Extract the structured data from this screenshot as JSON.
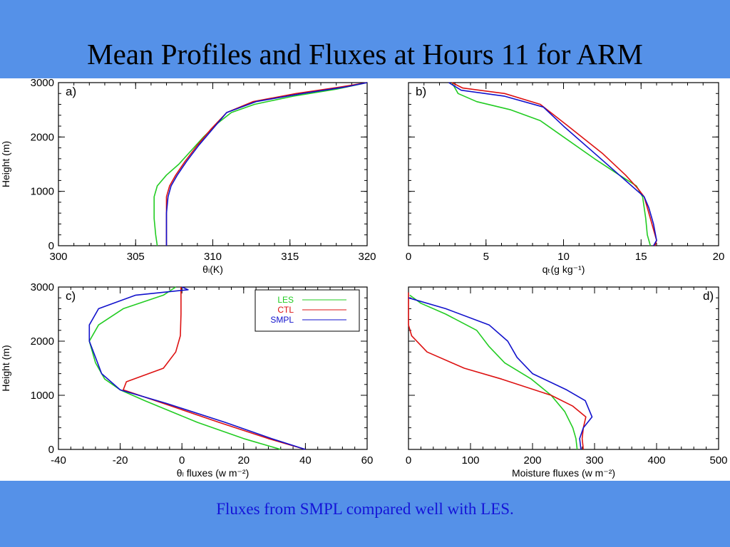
{
  "slide": {
    "title": "Mean Profiles and Fluxes at Hours 11 for ARM",
    "caption": "Fluxes from SMPL compared well with LES."
  },
  "colors": {
    "LES": "#22cc22",
    "CTL": "#dd1111",
    "SMPL": "#1111cc",
    "background": "#5591e8"
  },
  "chart_data": [
    {
      "type": "line",
      "panel_label": "a)",
      "xlabel": "θₗ(K)",
      "ylabel": "Height (m)",
      "xlim": [
        300,
        320
      ],
      "ylim": [
        0,
        3000
      ],
      "xticks": [
        300,
        305,
        310,
        315,
        320
      ],
      "yticks": [
        0,
        1000,
        2000,
        3000
      ],
      "series": [
        {
          "name": "LES",
          "color": "#22cc22",
          "points": [
            [
              306.4,
              0
            ],
            [
              306.3,
              200
            ],
            [
              306.2,
              500
            ],
            [
              306.2,
              900
            ],
            [
              306.4,
              1100
            ],
            [
              307.0,
              1300
            ],
            [
              307.8,
              1500
            ],
            [
              308.6,
              1750
            ],
            [
              309.4,
              2000
            ],
            [
              310.3,
              2250
            ],
            [
              311.2,
              2450
            ],
            [
              312.7,
              2600
            ],
            [
              315.2,
              2750
            ],
            [
              318.0,
              2880
            ],
            [
              320.0,
              3000
            ]
          ]
        },
        {
          "name": "CTL",
          "color": "#dd1111",
          "points": [
            [
              307.0,
              0
            ],
            [
              307.0,
              300
            ],
            [
              307.0,
              600
            ],
            [
              307.0,
              900
            ],
            [
              307.2,
              1100
            ],
            [
              307.6,
              1300
            ],
            [
              308.2,
              1550
            ],
            [
              309.0,
              1850
            ],
            [
              309.9,
              2150
            ],
            [
              310.9,
              2450
            ],
            [
              312.6,
              2650
            ],
            [
              315.4,
              2800
            ],
            [
              318.3,
              2920
            ],
            [
              320.0,
              3000
            ]
          ]
        },
        {
          "name": "SMPL",
          "color": "#1111cc",
          "points": [
            [
              307.0,
              0
            ],
            [
              307.0,
              300
            ],
            [
              307.0,
              600
            ],
            [
              307.1,
              900
            ],
            [
              307.3,
              1100
            ],
            [
              307.7,
              1300
            ],
            [
              308.3,
              1550
            ],
            [
              309.1,
              1850
            ],
            [
              310.0,
              2150
            ],
            [
              310.9,
              2450
            ],
            [
              312.8,
              2650
            ],
            [
              315.8,
              2800
            ],
            [
              318.6,
              2920
            ],
            [
              320.0,
              3000
            ]
          ]
        }
      ]
    },
    {
      "type": "line",
      "panel_label": "b)",
      "xlabel": "qₜ(g kg⁻¹)",
      "ylabel": "",
      "xlim": [
        0,
        20
      ],
      "ylim": [
        0,
        3000
      ],
      "xticks": [
        0,
        5,
        10,
        15,
        20
      ],
      "yticks": [
        0,
        1000,
        2000,
        3000
      ],
      "series": [
        {
          "name": "LES",
          "color": "#22cc22",
          "points": [
            [
              15.6,
              0
            ],
            [
              15.4,
              200
            ],
            [
              15.3,
              500
            ],
            [
              15.1,
              900
            ],
            [
              14.7,
              1100
            ],
            [
              13.6,
              1300
            ],
            [
              12.0,
              1600
            ],
            [
              10.0,
              2000
            ],
            [
              8.5,
              2300
            ],
            [
              6.6,
              2500
            ],
            [
              4.4,
              2650
            ],
            [
              3.2,
              2800
            ],
            [
              2.8,
              3000
            ]
          ]
        },
        {
          "name": "CTL",
          "color": "#dd1111",
          "points": [
            [
              15.9,
              0
            ],
            [
              16.0,
              100
            ],
            [
              15.7,
              400
            ],
            [
              15.4,
              700
            ],
            [
              15.2,
              900
            ],
            [
              14.8,
              1050
            ],
            [
              14.0,
              1300
            ],
            [
              12.5,
              1700
            ],
            [
              10.3,
              2200
            ],
            [
              8.5,
              2600
            ],
            [
              6.2,
              2800
            ],
            [
              3.5,
              2900
            ],
            [
              2.8,
              3000
            ]
          ]
        },
        {
          "name": "SMPL",
          "color": "#1111cc",
          "points": [
            [
              15.8,
              0
            ],
            [
              16.0,
              100
            ],
            [
              15.8,
              400
            ],
            [
              15.5,
              700
            ],
            [
              15.2,
              900
            ],
            [
              14.6,
              1050
            ],
            [
              13.6,
              1300
            ],
            [
              12.0,
              1700
            ],
            [
              10.0,
              2200
            ],
            [
              8.7,
              2550
            ],
            [
              6.2,
              2750
            ],
            [
              3.4,
              2860
            ],
            [
              2.6,
              3000
            ]
          ]
        }
      ]
    },
    {
      "type": "line",
      "panel_label": "c)",
      "xlabel": "θₗ fluxes (w m⁻²)",
      "ylabel": "Height (m)",
      "xlim": [
        -40,
        60
      ],
      "ylim": [
        0,
        3000
      ],
      "xticks": [
        -40,
        -20,
        0,
        20,
        40,
        60
      ],
      "yticks": [
        0,
        1000,
        2000,
        3000
      ],
      "legend": {
        "position": "top-right",
        "entries": [
          "LES",
          "CTL",
          "SMPL"
        ]
      },
      "series": [
        {
          "name": "LES",
          "color": "#22cc22",
          "points": [
            [
              32,
              0
            ],
            [
              20,
              200
            ],
            [
              5,
              500
            ],
            [
              -12,
              900
            ],
            [
              -20,
              1100
            ],
            [
              -25,
              1300
            ],
            [
              -28,
              1600
            ],
            [
              -30,
              2000
            ],
            [
              -27,
              2300
            ],
            [
              -19,
              2600
            ],
            [
              -6,
              2850
            ],
            [
              -2,
              3000
            ]
          ]
        },
        {
          "name": "CTL",
          "color": "#dd1111",
          "points": [
            [
              40,
              0
            ],
            [
              28,
              200
            ],
            [
              12,
              500
            ],
            [
              -6,
              850
            ],
            [
              -19,
              1100
            ],
            [
              -18,
              1250
            ],
            [
              -6,
              1500
            ],
            [
              -2,
              1800
            ],
            [
              -0.5,
              2100
            ],
            [
              -0.3,
              2500
            ],
            [
              -0.3,
              3000
            ]
          ]
        },
        {
          "name": "SMPL",
          "color": "#1111cc",
          "points": [
            [
              40,
              0
            ],
            [
              29,
              200
            ],
            [
              14,
              500
            ],
            [
              -5,
              850
            ],
            [
              -20,
              1100
            ],
            [
              -26,
              1400
            ],
            [
              -28,
              1700
            ],
            [
              -30,
              2000
            ],
            [
              -30,
              2300
            ],
            [
              -27,
              2600
            ],
            [
              -15,
              2850
            ],
            [
              2,
              2950
            ],
            [
              0,
              3000
            ]
          ]
        }
      ]
    },
    {
      "type": "line",
      "panel_label": "d)",
      "xlabel": "Moisture fluxes (w m⁻²)",
      "ylabel": "",
      "xlim": [
        0,
        500
      ],
      "ylim": [
        0,
        3000
      ],
      "xticks": [
        0,
        100,
        200,
        300,
        400,
        500
      ],
      "yticks": [
        0,
        1000,
        2000,
        3000
      ],
      "series": [
        {
          "name": "LES",
          "color": "#22cc22",
          "points": [
            [
              272,
              0
            ],
            [
              270,
              200
            ],
            [
              265,
              400
            ],
            [
              252,
              700
            ],
            [
              230,
              1000
            ],
            [
              198,
              1300
            ],
            [
              155,
              1600
            ],
            [
              130,
              1900
            ],
            [
              110,
              2200
            ],
            [
              60,
              2500
            ],
            [
              20,
              2700
            ],
            [
              2,
              2850
            ]
          ]
        },
        {
          "name": "CTL",
          "color": "#dd1111",
          "points": [
            [
              282,
              0
            ],
            [
              280,
              200
            ],
            [
              282,
              400
            ],
            [
              286,
              600
            ],
            [
              265,
              800
            ],
            [
              230,
              1000
            ],
            [
              150,
              1300
            ],
            [
              90,
              1500
            ],
            [
              30,
              1800
            ],
            [
              5,
              2100
            ],
            [
              0,
              2300
            ],
            [
              0,
              2900
            ]
          ]
        },
        {
          "name": "SMPL",
          "color": "#1111cc",
          "points": [
            [
              278,
              0
            ],
            [
              276,
              200
            ],
            [
              282,
              400
            ],
            [
              296,
              600
            ],
            [
              285,
              900
            ],
            [
              255,
              1100
            ],
            [
              200,
              1400
            ],
            [
              175,
              1700
            ],
            [
              160,
              2000
            ],
            [
              130,
              2300
            ],
            [
              60,
              2600
            ],
            [
              0,
              2800
            ]
          ]
        }
      ]
    }
  ]
}
